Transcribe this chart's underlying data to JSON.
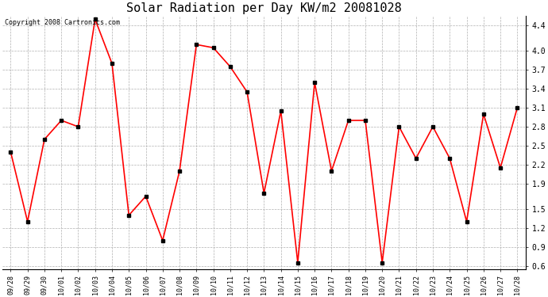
{
  "title": "Solar Radiation per Day KW/m2 20081028",
  "copyright_text": "Copyright 2008 Cartronics.com",
  "labels": [
    "09/28",
    "09/29",
    "09/30",
    "10/01",
    "10/02",
    "10/03",
    "10/04",
    "10/05",
    "10/06",
    "10/07",
    "10/08",
    "10/09",
    "10/10",
    "10/11",
    "10/12",
    "10/13",
    "10/14",
    "10/15",
    "10/16",
    "10/17",
    "10/18",
    "10/19",
    "10/20",
    "10/21",
    "10/22",
    "10/23",
    "10/24",
    "10/25",
    "10/26",
    "10/27",
    "10/28"
  ],
  "values": [
    2.4,
    1.3,
    2.6,
    2.9,
    2.8,
    4.5,
    3.8,
    1.4,
    1.7,
    1.0,
    2.1,
    4.1,
    4.05,
    3.75,
    3.35,
    1.75,
    3.05,
    0.65,
    3.5,
    2.1,
    2.9,
    2.9,
    0.65,
    2.8,
    2.3,
    2.8,
    2.3,
    1.3,
    3.0,
    2.15,
    3.1
  ],
  "line_color": "#ff0000",
  "marker_color": "#000000",
  "bg_color": "#ffffff",
  "grid_color": "#b0b0b0",
  "title_fontsize": 11,
  "copyright_fontsize": 6,
  "xtick_fontsize": 6,
  "ytick_fontsize": 7,
  "ylim_min": 0.55,
  "ylim_max": 4.55,
  "yticks": [
    0.6,
    0.9,
    1.2,
    1.5,
    1.9,
    2.2,
    2.5,
    2.8,
    3.1,
    3.4,
    3.7,
    4.0,
    4.4
  ],
  "linewidth": 1.2,
  "markersize": 2.5
}
